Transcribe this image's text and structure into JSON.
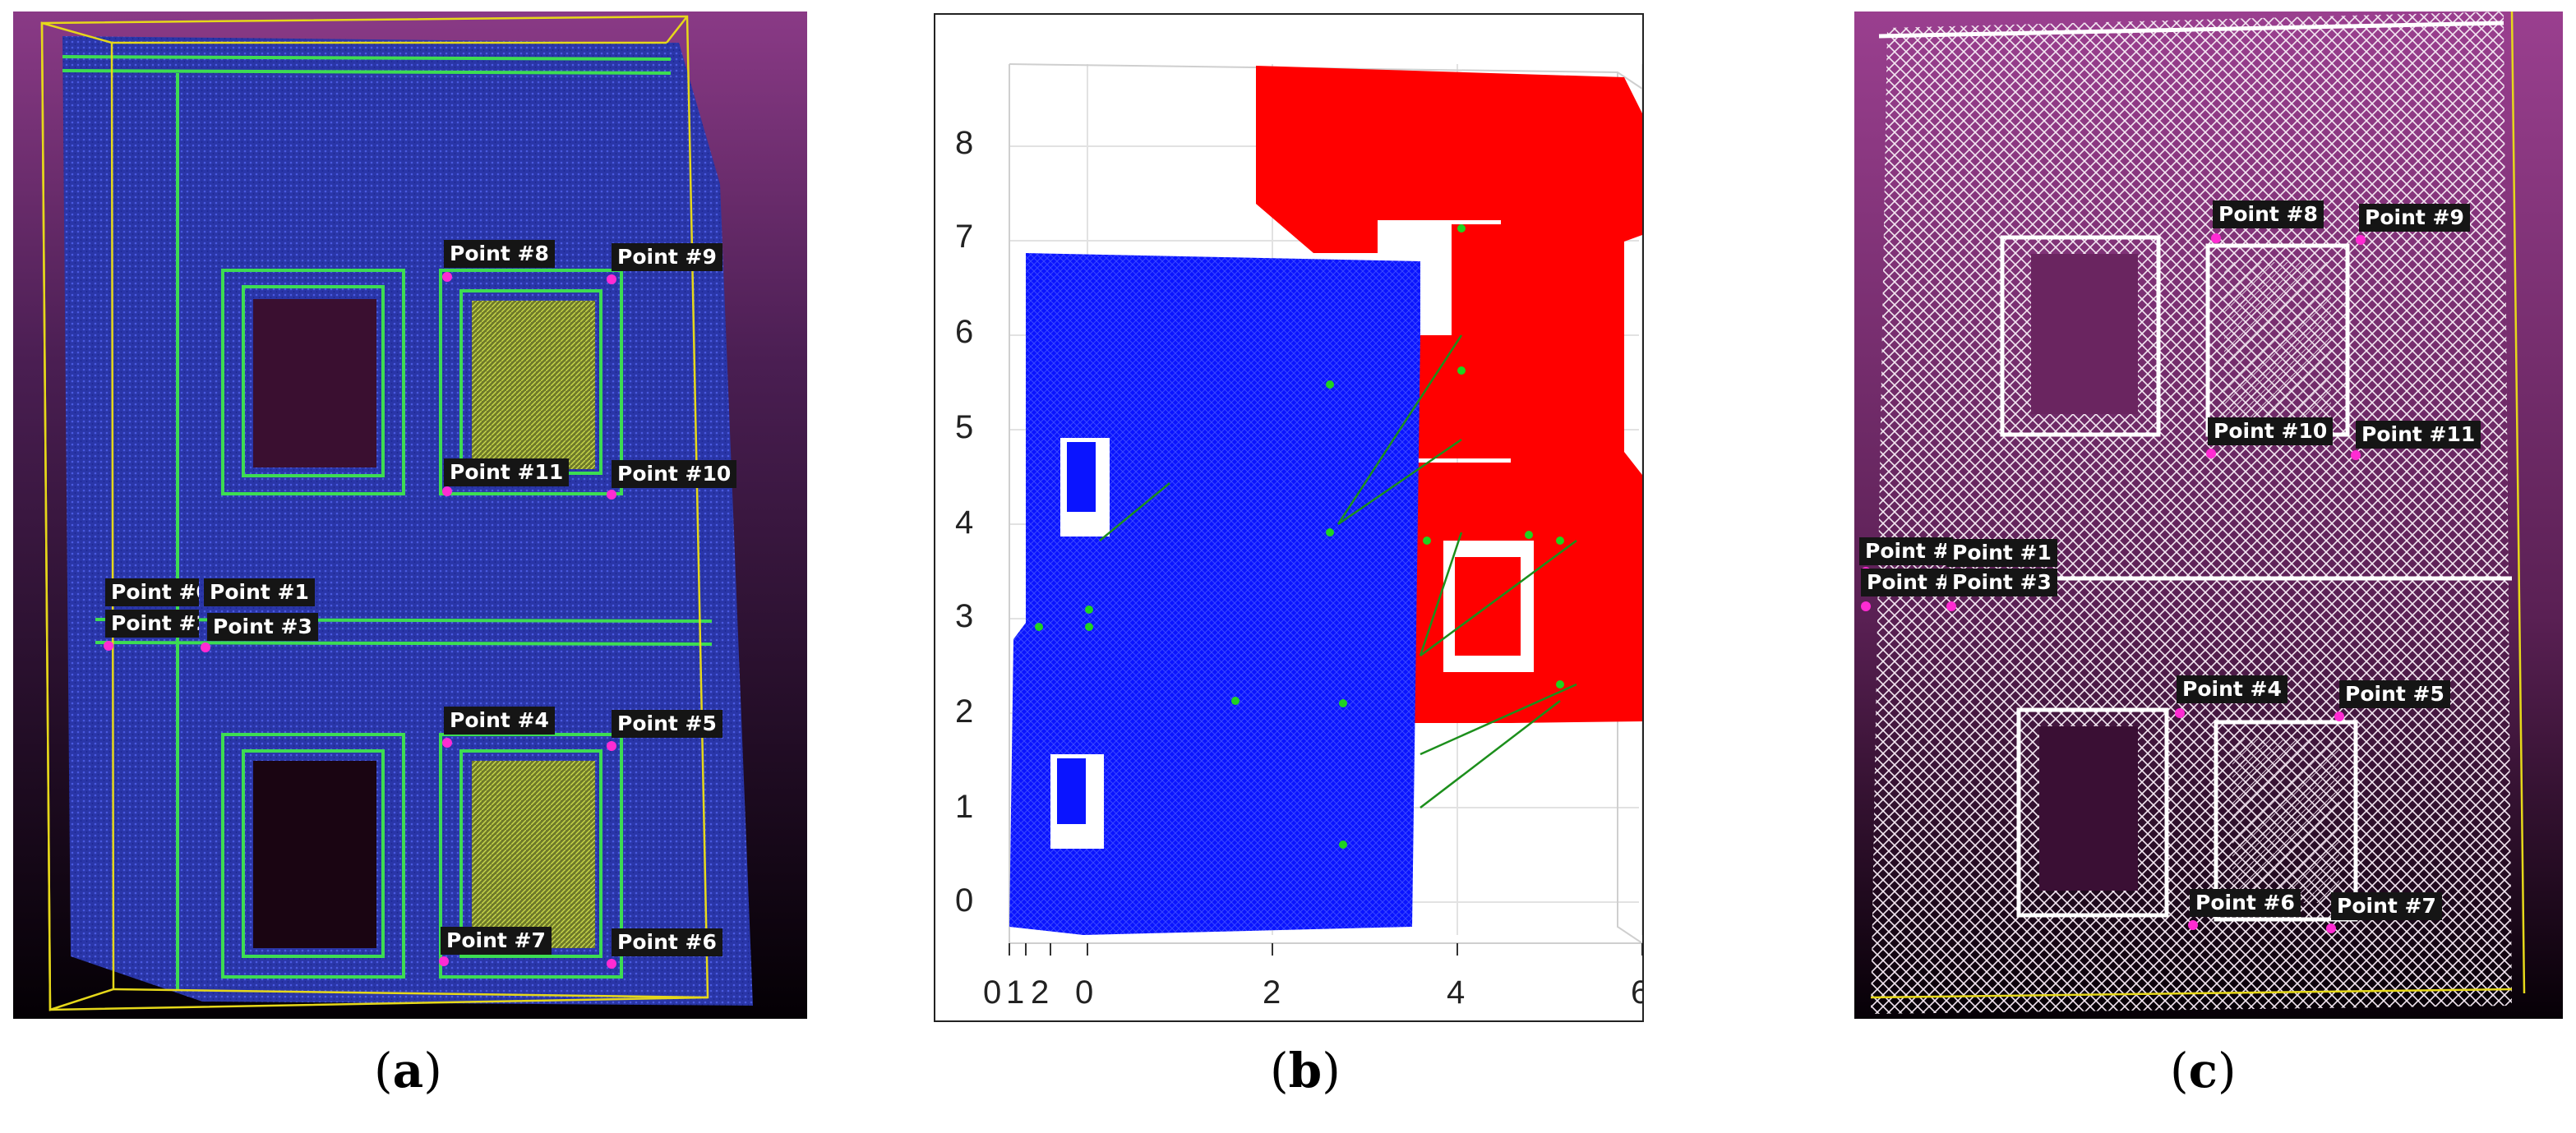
{
  "panels": [
    {
      "id": "a",
      "caption_open": "(",
      "caption_letter": "a",
      "caption_close": ")",
      "point_labels": [
        "Point #8",
        "Point #9",
        "Point #11",
        "Point #10",
        "Point #0",
        "Point #1",
        "Point #2",
        "Point #3",
        "Point #4",
        "Point #5",
        "Point #7",
        "Point #6"
      ]
    },
    {
      "id": "b",
      "caption_open": "(",
      "caption_letter": "b",
      "caption_close": ")",
      "y_ticks": [
        "0",
        "1",
        "2",
        "3",
        "4",
        "5",
        "6",
        "7",
        "8"
      ],
      "x_ticks": [
        "0",
        "1",
        "2",
        "0",
        "2",
        "4",
        "6"
      ]
    },
    {
      "id": "c",
      "caption_open": "(",
      "caption_letter": "c",
      "caption_close": ")",
      "point_labels": [
        "Point #8",
        "Point #9",
        "Point #10",
        "Point #11",
        "Point #0",
        "Point #1",
        "Point #",
        "Point #3",
        "Point #4",
        "Point #5",
        "Point #6",
        "Point #7"
      ]
    }
  ],
  "colors": {
    "background_top": "#9a3f8f",
    "background_bottom": "#050005",
    "cloud_blue": "#2e3db8",
    "edge_green": "#3ddc52",
    "marker_magenta": "#ff2bd3",
    "box_yellow": "#e6d81a",
    "plot_red": "#ff0000",
    "plot_blue": "#0a14ff",
    "plot_green": "#1fd31f",
    "cloud_white": "#ffffff"
  }
}
